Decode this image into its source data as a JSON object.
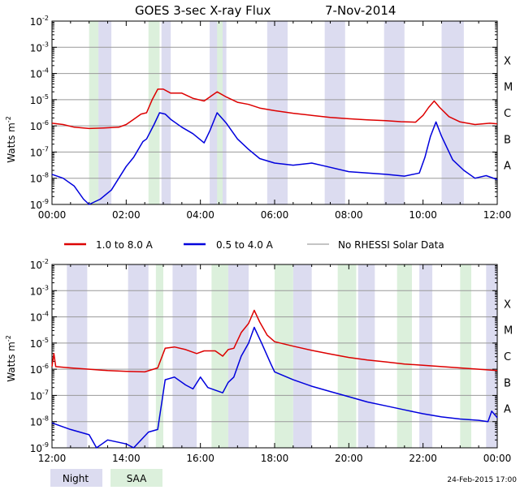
{
  "title": "GOES 3-sec X-ray Flux",
  "date": "7-Nov-2014",
  "footer_timestamp": "24-Feb-2015 17:00",
  "ylabel": "Watts m",
  "ylabel_exp": "-2",
  "legend": [
    {
      "label": "1.0 to 8.0 A",
      "color": "#dd0000"
    },
    {
      "label": "0.5 to 4.0 A",
      "color": "#0000dd"
    },
    {
      "label": "No RHESSI Solar Data",
      "color": "#888888"
    }
  ],
  "band_legend": {
    "night": "Night",
    "saa": "SAA"
  },
  "colors": {
    "night": "#dcdcf0",
    "saa": "#dcf0dc",
    "long": "#dd0000",
    "short": "#0000dd",
    "gap": "#888888"
  },
  "chart_data": [
    {
      "type": "line",
      "title": "GOES 3-sec X-ray Flux 7-Nov-2014 (00:00-12:00)",
      "xlabel": "",
      "ylabel": "Watts m-2",
      "xlim_hours": [
        0,
        12
      ],
      "ylim_log10": [
        -9,
        -2
      ],
      "x_ticks": [
        "00:00",
        "02:00",
        "04:00",
        "06:00",
        "08:00",
        "10:00",
        "12:00"
      ],
      "y_ticks": [
        "-9",
        "-8",
        "-7",
        "-6",
        "-5",
        "-4",
        "-3",
        "-2"
      ],
      "flare_classes": [
        {
          "label": "A",
          "log10": -8
        },
        {
          "label": "B",
          "log10": -7
        },
        {
          "label": "C",
          "log10": -6
        },
        {
          "label": "M",
          "log10": -5
        },
        {
          "label": "X",
          "log10": -4
        }
      ],
      "night_hours": [
        [
          1.25,
          1.6
        ],
        [
          2.95,
          3.2
        ],
        [
          4.25,
          4.7
        ],
        [
          5.8,
          6.35
        ],
        [
          7.35,
          7.9
        ],
        [
          8.95,
          9.5
        ],
        [
          10.5,
          11.1
        ]
      ],
      "saa_hours": [
        [
          1.0,
          1.25
        ],
        [
          2.6,
          2.9
        ],
        [
          4.45,
          4.6
        ]
      ],
      "series": [
        {
          "name": "1.0 to 8.0 A",
          "key": "long",
          "points": [
            [
              0,
              -5.9
            ],
            [
              0.3,
              -5.95
            ],
            [
              0.6,
              -6.05
            ],
            [
              1.0,
              -6.1
            ],
            [
              1.4,
              -6.08
            ],
            [
              1.8,
              -6.05
            ],
            [
              2.0,
              -5.95
            ],
            [
              2.2,
              -5.75
            ],
            [
              2.4,
              -5.55
            ],
            [
              2.55,
              -5.5
            ],
            [
              2.7,
              -5.0
            ],
            [
              2.85,
              -4.6
            ],
            [
              3.0,
              -4.6
            ],
            [
              3.2,
              -4.75
            ],
            [
              3.5,
              -4.75
            ],
            [
              3.8,
              -4.95
            ],
            [
              4.1,
              -5.05
            ],
            [
              4.3,
              -4.85
            ],
            [
              4.45,
              -4.7
            ],
            [
              4.7,
              -4.9
            ],
            [
              5.0,
              -5.1
            ],
            [
              5.3,
              -5.18
            ],
            [
              5.6,
              -5.32
            ],
            [
              6.0,
              -5.42
            ],
            [
              6.5,
              -5.52
            ],
            [
              7.0,
              -5.6
            ],
            [
              7.5,
              -5.68
            ],
            [
              8.0,
              -5.73
            ],
            [
              8.5,
              -5.77
            ],
            [
              9.0,
              -5.8
            ],
            [
              9.4,
              -5.84
            ],
            [
              9.8,
              -5.86
            ],
            [
              10.0,
              -5.6
            ],
            [
              10.15,
              -5.3
            ],
            [
              10.3,
              -5.05
            ],
            [
              10.45,
              -5.3
            ],
            [
              10.7,
              -5.65
            ],
            [
              11.0,
              -5.85
            ],
            [
              11.4,
              -5.95
            ],
            [
              11.8,
              -5.9
            ],
            [
              12.0,
              -5.92
            ]
          ]
        },
        {
          "name": "0.5 to 4.0 A",
          "key": "short",
          "points": [
            [
              0,
              -7.85
            ],
            [
              0.3,
              -8.0
            ],
            [
              0.6,
              -8.3
            ],
            [
              0.85,
              -8.8
            ],
            [
              1.0,
              -9.0
            ],
            [
              1.3,
              -8.8
            ],
            [
              1.6,
              -8.45
            ],
            [
              1.8,
              -8.0
            ],
            [
              2.0,
              -7.55
            ],
            [
              2.2,
              -7.2
            ],
            [
              2.45,
              -6.6
            ],
            [
              2.55,
              -6.5
            ],
            [
              2.75,
              -5.95
            ],
            [
              2.9,
              -5.5
            ],
            [
              3.05,
              -5.55
            ],
            [
              3.2,
              -5.75
            ],
            [
              3.5,
              -6.05
            ],
            [
              3.8,
              -6.3
            ],
            [
              4.1,
              -6.65
            ],
            [
              4.25,
              -6.2
            ],
            [
              4.45,
              -5.5
            ],
            [
              4.7,
              -5.9
            ],
            [
              5.0,
              -6.5
            ],
            [
              5.3,
              -6.9
            ],
            [
              5.6,
              -7.25
            ],
            [
              6.0,
              -7.42
            ],
            [
              6.5,
              -7.5
            ],
            [
              7.0,
              -7.42
            ],
            [
              7.4,
              -7.55
            ],
            [
              8.0,
              -7.75
            ],
            [
              8.5,
              -7.8
            ],
            [
              9.0,
              -7.85
            ],
            [
              9.5,
              -7.92
            ],
            [
              9.9,
              -7.8
            ],
            [
              10.05,
              -7.2
            ],
            [
              10.2,
              -6.4
            ],
            [
              10.35,
              -5.85
            ],
            [
              10.5,
              -6.4
            ],
            [
              10.8,
              -7.3
            ],
            [
              11.1,
              -7.7
            ],
            [
              11.4,
              -8.0
            ],
            [
              11.7,
              -7.9
            ],
            [
              12.0,
              -8.05
            ]
          ]
        }
      ]
    },
    {
      "type": "line",
      "title": "GOES 3-sec X-ray Flux 7-Nov-2014 (12:00-24:00)",
      "xlabel": "",
      "ylabel": "Watts m-2",
      "xlim_hours": [
        12,
        24
      ],
      "ylim_log10": [
        -9,
        -2
      ],
      "x_ticks": [
        "12:00",
        "14:00",
        "16:00",
        "18:00",
        "20:00",
        "22:00",
        "00:00"
      ],
      "y_ticks": [
        "-9",
        "-8",
        "-7",
        "-6",
        "-5",
        "-4",
        "-3",
        "-2"
      ],
      "flare_classes": [
        {
          "label": "A",
          "log10": -8
        },
        {
          "label": "B",
          "log10": -7
        },
        {
          "label": "C",
          "log10": -6
        },
        {
          "label": "M",
          "log10": -5
        },
        {
          "label": "X",
          "log10": -4
        }
      ],
      "night_hours": [
        [
          12.4,
          12.95
        ],
        [
          14.05,
          14.6
        ],
        [
          15.25,
          15.9
        ],
        [
          16.75,
          17.3
        ],
        [
          18.5,
          19.0
        ],
        [
          20.25,
          20.7
        ],
        [
          21.9,
          22.25
        ],
        [
          23.7,
          24.0
        ]
      ],
      "saa_hours": [
        [
          14.8,
          15.0
        ],
        [
          16.3,
          16.75
        ],
        [
          18.0,
          18.5
        ],
        [
          19.7,
          20.2
        ],
        [
          21.3,
          21.7
        ],
        [
          23.0,
          23.3
        ]
      ],
      "series": [
        {
          "name": "1.0 to 8.0 A",
          "key": "long",
          "points": [
            [
              12.0,
              -5.9
            ],
            [
              12.05,
              -5.4
            ],
            [
              12.1,
              -5.9
            ],
            [
              12.5,
              -5.95
            ],
            [
              13.0,
              -6.0
            ],
            [
              13.5,
              -6.05
            ],
            [
              14.0,
              -6.08
            ],
            [
              14.5,
              -6.1
            ],
            [
              14.85,
              -5.95
            ],
            [
              15.05,
              -5.2
            ],
            [
              15.3,
              -5.15
            ],
            [
              15.6,
              -5.25
            ],
            [
              15.9,
              -5.4
            ],
            [
              16.1,
              -5.3
            ],
            [
              16.4,
              -5.3
            ],
            [
              16.6,
              -5.5
            ],
            [
              16.75,
              -5.25
            ],
            [
              16.9,
              -5.2
            ],
            [
              17.1,
              -4.6
            ],
            [
              17.3,
              -4.25
            ],
            [
              17.45,
              -3.75
            ],
            [
              17.6,
              -4.2
            ],
            [
              17.8,
              -4.7
            ],
            [
              18.0,
              -4.95
            ],
            [
              18.5,
              -5.12
            ],
            [
              19.0,
              -5.28
            ],
            [
              19.5,
              -5.42
            ],
            [
              20.0,
              -5.55
            ],
            [
              20.5,
              -5.65
            ],
            [
              21.0,
              -5.72
            ],
            [
              21.5,
              -5.8
            ],
            [
              22.0,
              -5.85
            ],
            [
              22.5,
              -5.9
            ],
            [
              23.0,
              -5.95
            ],
            [
              23.5,
              -6.0
            ],
            [
              24.0,
              -6.05
            ]
          ]
        },
        {
          "name": "0.5 to 4.0 A",
          "key": "short",
          "points": [
            [
              12.0,
              -8.05
            ],
            [
              12.5,
              -8.3
            ],
            [
              13.0,
              -8.5
            ],
            [
              13.2,
              -9.0
            ],
            [
              13.5,
              -8.7
            ],
            [
              14.0,
              -8.85
            ],
            [
              14.2,
              -9.0
            ],
            [
              14.6,
              -8.4
            ],
            [
              14.85,
              -8.3
            ],
            [
              15.05,
              -6.4
            ],
            [
              15.3,
              -6.3
            ],
            [
              15.6,
              -6.6
            ],
            [
              15.8,
              -6.75
            ],
            [
              16.0,
              -6.3
            ],
            [
              16.2,
              -6.7
            ],
            [
              16.6,
              -6.9
            ],
            [
              16.75,
              -6.5
            ],
            [
              16.9,
              -6.3
            ],
            [
              17.1,
              -5.5
            ],
            [
              17.3,
              -5.0
            ],
            [
              17.45,
              -4.4
            ],
            [
              17.65,
              -5.0
            ],
            [
              17.9,
              -5.8
            ],
            [
              18.0,
              -6.1
            ],
            [
              18.5,
              -6.4
            ],
            [
              19.0,
              -6.65
            ],
            [
              19.5,
              -6.85
            ],
            [
              20.0,
              -7.05
            ],
            [
              20.5,
              -7.25
            ],
            [
              21.0,
              -7.4
            ],
            [
              21.5,
              -7.55
            ],
            [
              22.0,
              -7.7
            ],
            [
              22.5,
              -7.82
            ],
            [
              23.0,
              -7.9
            ],
            [
              23.5,
              -7.95
            ],
            [
              23.75,
              -8.0
            ],
            [
              23.85,
              -7.6
            ],
            [
              24.0,
              -7.85
            ]
          ]
        }
      ]
    }
  ]
}
